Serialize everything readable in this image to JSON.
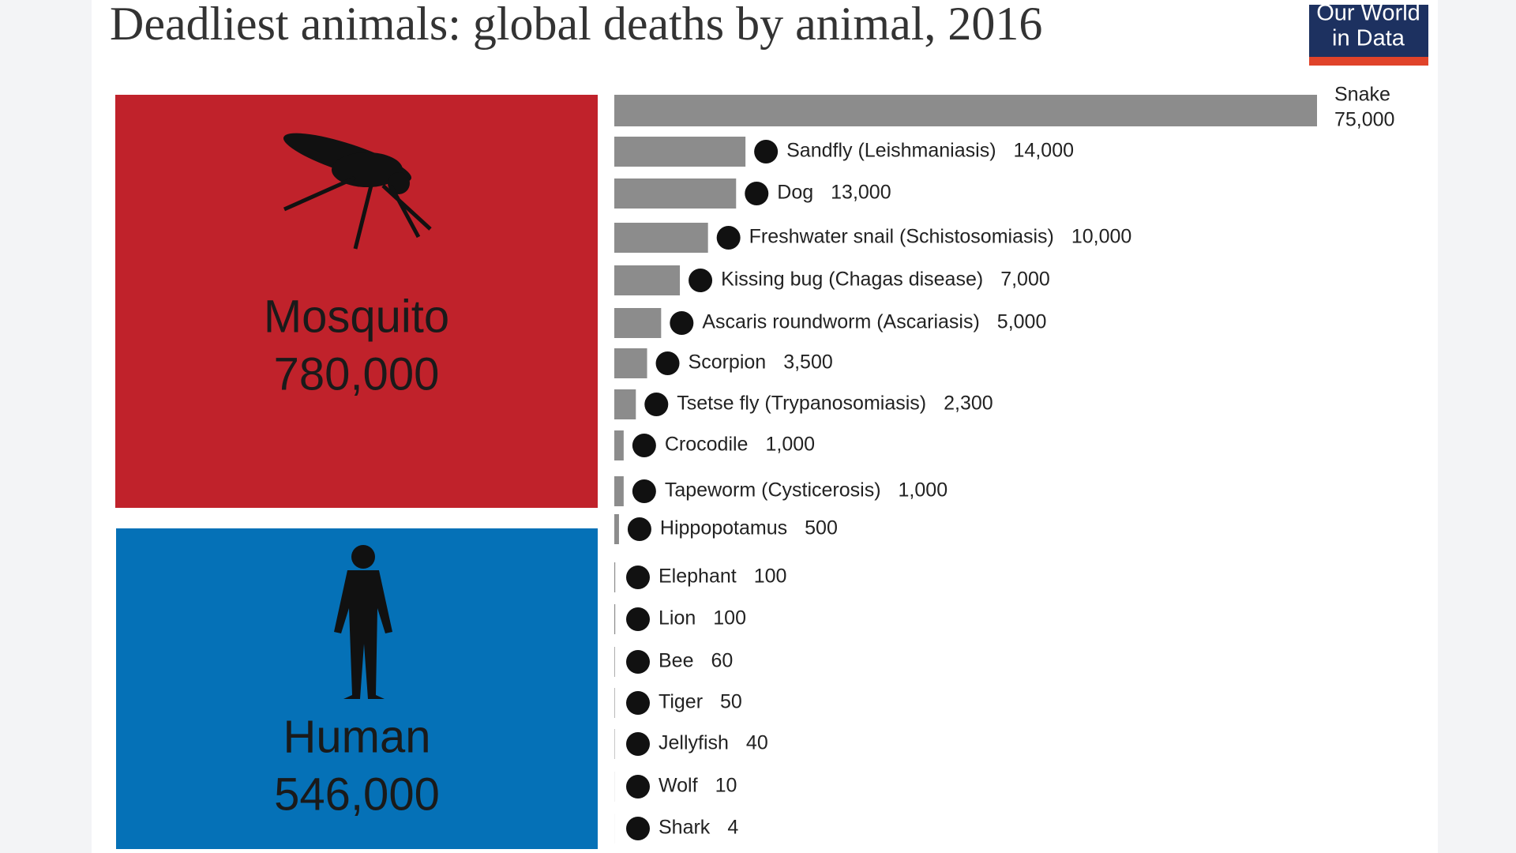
{
  "chart_data": {
    "type": "bar",
    "title": "Deadliest animals: global deaths by animal, 2016",
    "logo": [
      "Our World",
      "in Data"
    ],
    "highlights": [
      {
        "name": "Mosquito",
        "value": 780000,
        "value_label": "780,000",
        "color": "#c0222b"
      },
      {
        "name": "Human",
        "value": 546000,
        "value_label": "546,000",
        "color": "#0571b7"
      }
    ],
    "categories": [
      "Snake",
      "Sandfly (Leishmaniasis)",
      "Dog",
      "Freshwater snail (Schistosomiasis)",
      "Kissing bug (Chagas disease)",
      "Ascaris roundworm (Ascariasis)",
      "Scorpion",
      "Tsetse fly (Trypanosomiasis)",
      "Crocodile",
      "Tapeworm (Cysticerosis)",
      "Hippopotamus",
      "Elephant",
      "Lion",
      "Bee",
      "Tiger",
      "Jellyfish",
      "Wolf",
      "Shark"
    ],
    "values": [
      75000,
      14000,
      13000,
      10000,
      7000,
      5000,
      3500,
      2300,
      1000,
      1000,
      500,
      100,
      100,
      60,
      50,
      40,
      10,
      4
    ],
    "value_labels": [
      "75,000",
      "14,000",
      "13,000",
      "10,000",
      "7,000",
      "5,000",
      "3,500",
      "2,300",
      "1,000",
      "1,000",
      "500",
      "100",
      "100",
      "60",
      "50",
      "40",
      "10",
      "4"
    ],
    "color": "#8c8c8c",
    "xlim": [
      0,
      75000
    ]
  }
}
